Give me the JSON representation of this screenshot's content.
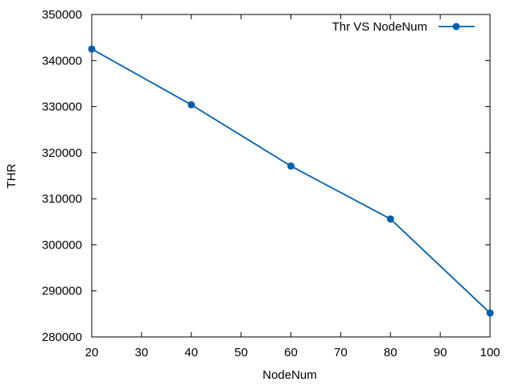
{
  "chart_data": {
    "type": "line",
    "title": "",
    "xlabel": "NodeNum",
    "ylabel": "THR",
    "xlim": [
      20,
      100
    ],
    "ylim": [
      280000,
      350000
    ],
    "xticks": [
      20,
      30,
      40,
      50,
      60,
      70,
      80,
      90,
      100
    ],
    "yticks": [
      280000,
      290000,
      300000,
      310000,
      320000,
      330000,
      340000,
      350000
    ],
    "grid": false,
    "legend_position": "top-right",
    "series": [
      {
        "name": "Thr VS NodeNum",
        "color": "#005fac",
        "marker": "circle",
        "x": [
          20,
          40,
          60,
          80,
          100
        ],
        "y": [
          342500,
          330400,
          317100,
          305600,
          285200
        ]
      }
    ]
  }
}
